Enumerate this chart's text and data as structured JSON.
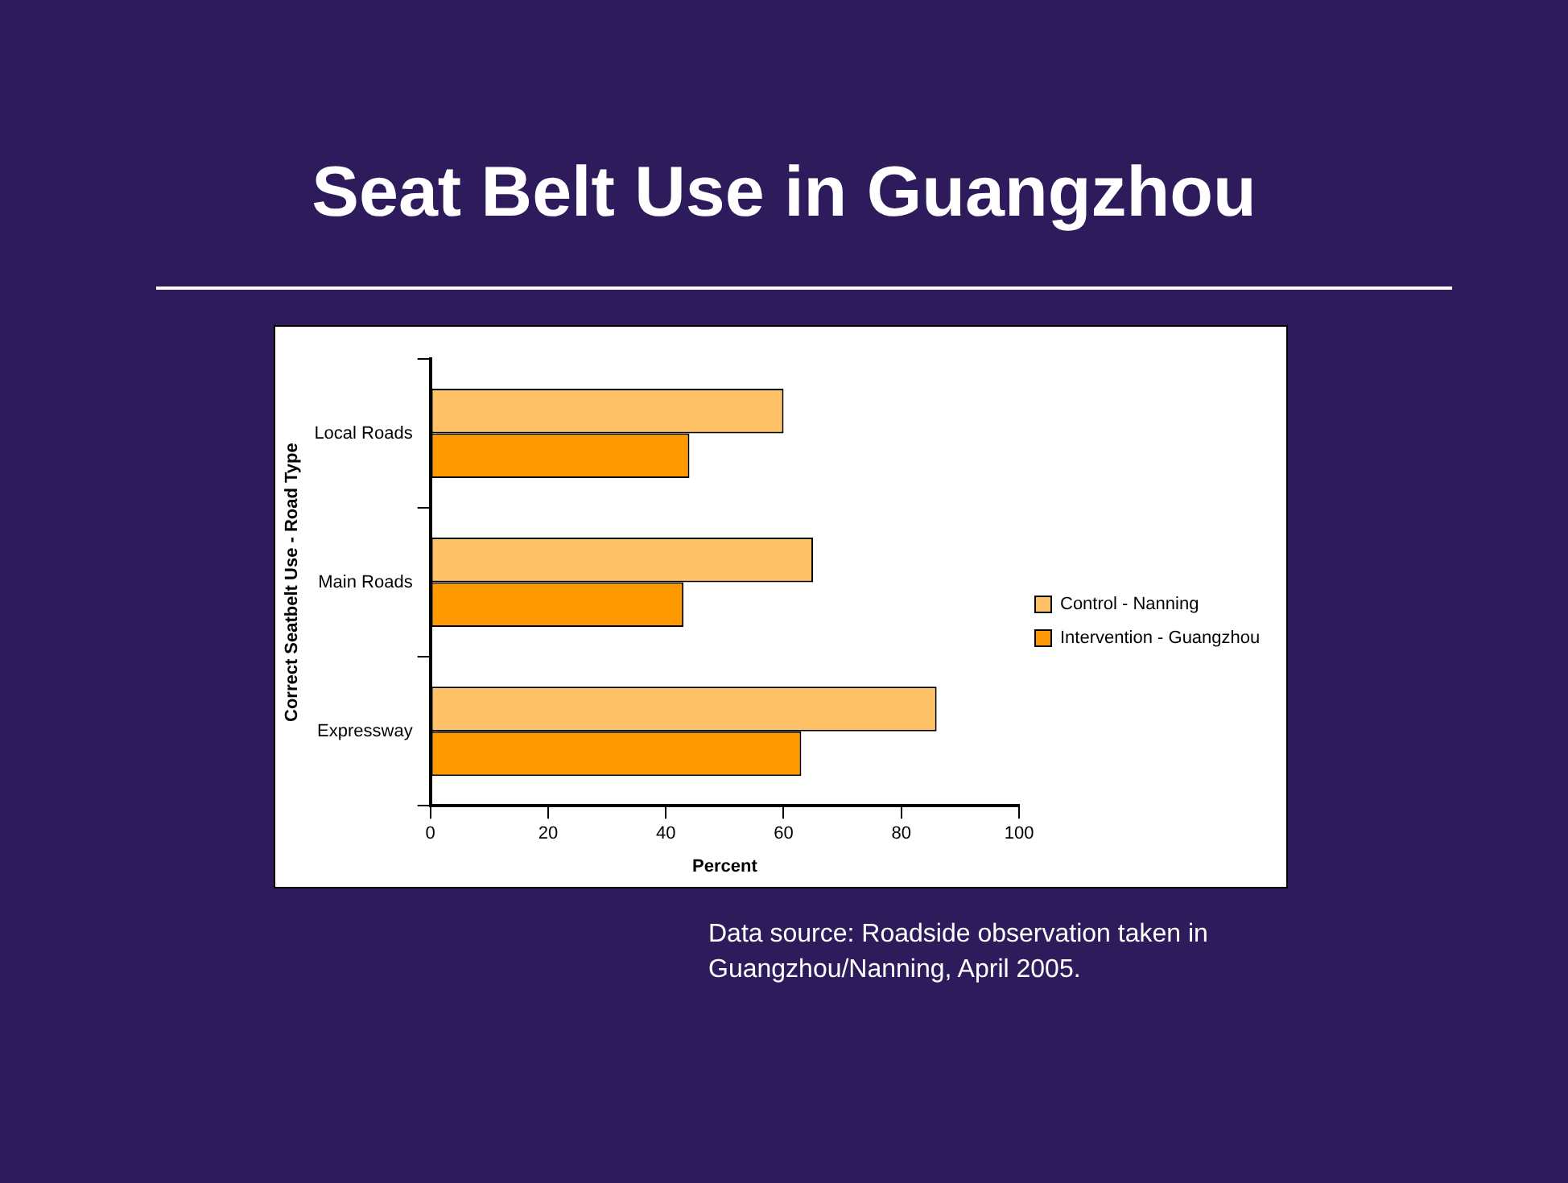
{
  "chart_data": {
    "type": "bar",
    "orientation": "horizontal",
    "title": "Seat Belt Use in Guangzhou",
    "xlabel": "Percent",
    "ylabel": "Correct Seatbelt Use - Road Type",
    "categories": [
      "Local Roads",
      "Main Roads",
      "Expressway"
    ],
    "series": [
      {
        "name": "Control - Nanning",
        "color": "#ffc266",
        "values": [
          60,
          65,
          86
        ]
      },
      {
        "name": "Intervention - Guangzhou",
        "color": "#ff9900",
        "values": [
          44,
          43,
          63
        ]
      }
    ],
    "xlim": [
      0,
      100
    ],
    "xticks": [
      0,
      20,
      40,
      60,
      80,
      100
    ],
    "grid": false,
    "legend": "right",
    "annotations": [
      "Data source: Roadside observation taken in Guangzhou/Nanning, April 2005."
    ]
  }
}
